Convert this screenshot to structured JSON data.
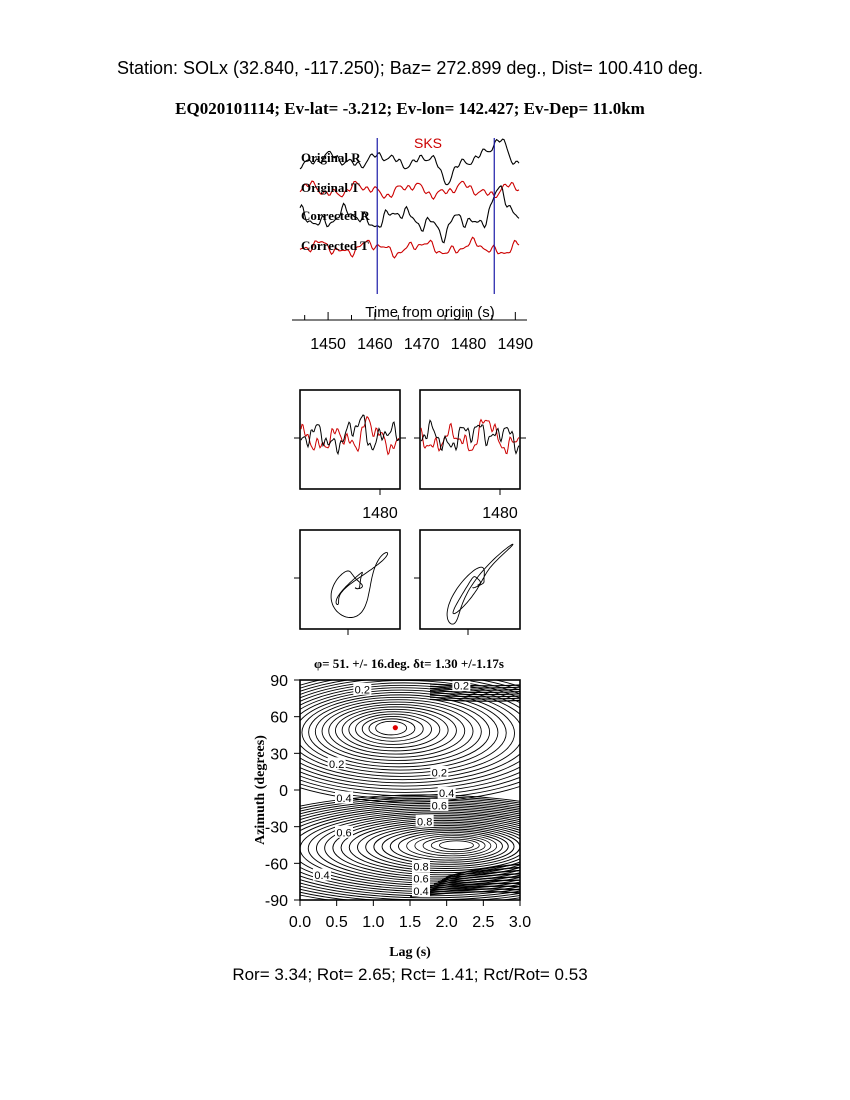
{
  "header": {
    "station_line": "Station: SOLx (32.840, -117.250); Baz=  272.899 deg., Dist=  100.410 deg.",
    "event_line": "EQ020101114; Ev-lat=  -3.212; Ev-lon= 142.427; Ev-Dep= 11.0km"
  },
  "footer": {
    "stats_line": "Ror= 3.34; Rot= 2.65; Rct= 1.41; Rct/Rot= 0.53"
  },
  "colors": {
    "radial": "#000000",
    "transverse": "#cc0000",
    "window_marker": "#1a1aa8",
    "phase_label": "#cc0000",
    "best_fit": "#e00000"
  },
  "chart_data": [
    {
      "type": "line",
      "panel": "seismograms",
      "phase_label": "SKS",
      "traces": [
        {
          "label": "Original R",
          "component": "radial"
        },
        {
          "label": "Original T",
          "component": "transverse"
        },
        {
          "label": "Corrected R",
          "component": "radial"
        },
        {
          "label": "Corrected T",
          "component": "transverse"
        }
      ],
      "xlabel": "Time from origin (s)",
      "xticks": [
        1450,
        1460,
        1470,
        1480,
        1490
      ],
      "xlim": [
        1444,
        1491
      ],
      "window": [
        1460.5,
        1485.5
      ]
    },
    {
      "type": "line",
      "panel": "fast-slow-overlay",
      "subpanels": [
        "before",
        "after"
      ],
      "xtick_label": 1480
    },
    {
      "type": "scatter",
      "panel": "particle-motion",
      "subpanels": [
        "before",
        "after"
      ]
    },
    {
      "type": "heatmap",
      "panel": "energy-contour",
      "title": "φ= 51. +/- 16.deg. δt= 1.30 +/-1.17s",
      "xlabel": "Lag (s)",
      "ylabel": "Azimuth (degrees)",
      "xlim": [
        0.0,
        3.0
      ],
      "ylim": [
        -90,
        90
      ],
      "xticks": [
        "0.0",
        "0.5",
        "1.0",
        "1.5",
        "2.0",
        "2.5",
        "3.0"
      ],
      "yticks": [
        "90",
        "60",
        "30",
        "0",
        "-30",
        "-60",
        "-90"
      ],
      "best_fit": {
        "lag": 1.3,
        "azimuth": 51
      },
      "contour_labels": [
        {
          "text": "0.2",
          "lag": 0.85,
          "azimuth": 82
        },
        {
          "text": "0.2",
          "lag": 2.2,
          "azimuth": 85
        },
        {
          "text": "0.2",
          "lag": 0.5,
          "azimuth": 21
        },
        {
          "text": "0.2",
          "lag": 1.9,
          "azimuth": 14
        },
        {
          "text": "0.4",
          "lag": 0.6,
          "azimuth": -7
        },
        {
          "text": "0.4",
          "lag": 2.0,
          "azimuth": -3
        },
        {
          "text": "0.6",
          "lag": 1.9,
          "azimuth": -13
        },
        {
          "text": "0.8",
          "lag": 1.7,
          "azimuth": -26
        },
        {
          "text": "0.6",
          "lag": 0.6,
          "azimuth": -35
        },
        {
          "text": "0.8",
          "lag": 1.65,
          "azimuth": -63
        },
        {
          "text": "0.6",
          "lag": 1.65,
          "azimuth": -73
        },
        {
          "text": "0.4",
          "lag": 1.65,
          "azimuth": -83
        },
        {
          "text": "0.4",
          "lag": 0.3,
          "azimuth": -70
        }
      ]
    }
  ]
}
